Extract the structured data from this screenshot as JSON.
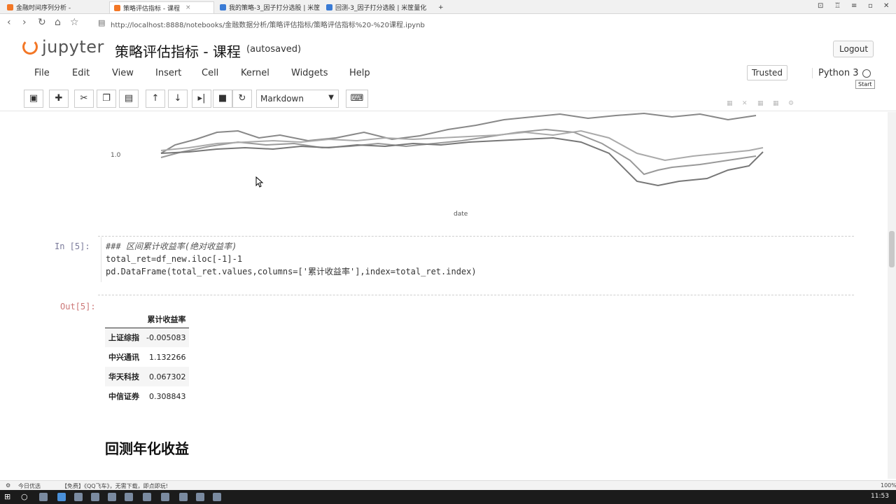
{
  "browser": {
    "tabs": [
      {
        "label": "金融时间序列分析 -"
      },
      {
        "label": "策略评估指标 - 课程"
      },
      {
        "label": "我的策略-3_因子打分选股 | 米筐"
      },
      {
        "label": "回测-3_因子打分选股 | 米筐量化"
      }
    ],
    "new_tab": "+",
    "url": "http://localhost:8888/notebooks/金融数据分析/策略评估指标/策略评估指标%20-%20课程.ipynb"
  },
  "header": {
    "logo_text": "jupyter",
    "notebook_title": "策略评估指标 - 课程",
    "autosave": "(autosaved)",
    "logout": "Logout",
    "start": "Start"
  },
  "menu": {
    "items": [
      "File",
      "Edit",
      "View",
      "Insert",
      "Cell",
      "Kernel",
      "Widgets",
      "Help"
    ],
    "trusted": "Trusted",
    "kernel": "Python 3"
  },
  "toolbar": {
    "cell_type": "Markdown",
    "icons": [
      "save-icon",
      "plus-icon",
      "cut-icon",
      "copy-icon",
      "paste-icon",
      "arrow-up-icon",
      "arrow-down-icon",
      "run-icon",
      "stop-icon",
      "restart-icon",
      "keyboard-icon"
    ]
  },
  "plot": {
    "ytick": "1.0",
    "xlabel": "date"
  },
  "cell5": {
    "prompt": "In [5]:",
    "lines": [
      "### 区间累计收益率(绝对收益率)",
      "total_ret=df_new.iloc[-1]-1",
      "pd.DataFrame(total_ret.values,columns=['累计收益率'],index=total_ret.index)"
    ],
    "out_prompt": "Out[5]:"
  },
  "table": {
    "column": "累计收益率",
    "rows": [
      {
        "name": "上证综指",
        "value": "-0.005083"
      },
      {
        "name": "中兴通讯",
        "value": "1.132266"
      },
      {
        "name": "华天科技",
        "value": "0.067302"
      },
      {
        "name": "中信证券",
        "value": "0.308843"
      }
    ]
  },
  "markdown_heading": "回测年化收益",
  "status": {
    "left": "今日优选",
    "news": "【免费】《QQ飞车》，无需下载，即点即玩!",
    "zoom": "100%"
  },
  "clock": "11:53"
}
